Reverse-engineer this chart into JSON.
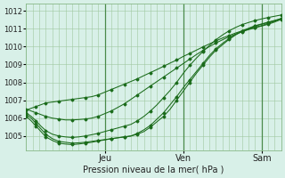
{
  "bg_color": "#d8f0e8",
  "line_color": "#1a6b1a",
  "grid_color": "#a0c8a0",
  "xlabel_label": "Pression niveau de la mer( hPa )",
  "xlabel_ticks": [
    "Jeu",
    "Ven",
    "Sam"
  ],
  "xlabel_tick_positions": [
    48,
    96,
    144
  ],
  "xlim": [
    0,
    156
  ],
  "ylim": [
    1004.2,
    1012.4
  ],
  "yticks": [
    1005,
    1006,
    1007,
    1008,
    1009,
    1010,
    1011,
    1012
  ],
  "series": [
    {
      "x": [
        0,
        3,
        6,
        9,
        12,
        16,
        20,
        24,
        28,
        32,
        36,
        40,
        44,
        48,
        52,
        56,
        60,
        64,
        68,
        72,
        76,
        80,
        84,
        88,
        92,
        96,
        100,
        104,
        108,
        112,
        116,
        120,
        124,
        128,
        132,
        136,
        140,
        144,
        148,
        152,
        156
      ],
      "y": [
        1006.2,
        1006.0,
        1005.7,
        1005.4,
        1005.1,
        1004.85,
        1004.7,
        1004.65,
        1004.6,
        1004.62,
        1004.65,
        1004.7,
        1004.75,
        1004.8,
        1004.85,
        1004.9,
        1004.95,
        1005.0,
        1005.1,
        1005.25,
        1005.5,
        1005.8,
        1006.1,
        1006.5,
        1007.0,
        1007.5,
        1008.0,
        1008.5,
        1008.95,
        1009.4,
        1009.8,
        1010.1,
        1010.4,
        1010.65,
        1010.85,
        1011.0,
        1011.15,
        1011.25,
        1011.35,
        1011.45,
        1011.55
      ]
    },
    {
      "x": [
        0,
        3,
        6,
        9,
        12,
        16,
        20,
        24,
        28,
        32,
        36,
        40,
        44,
        48,
        52,
        56,
        60,
        64,
        68,
        72,
        76,
        80,
        84,
        88,
        92,
        96,
        100,
        104,
        108,
        112,
        116,
        120,
        124,
        128,
        132,
        136,
        140,
        144,
        148,
        152,
        156
      ],
      "y": [
        1006.1,
        1005.85,
        1005.55,
        1005.25,
        1004.95,
        1004.75,
        1004.6,
        1004.55,
        1004.52,
        1004.55,
        1004.6,
        1004.65,
        1004.72,
        1004.78,
        1004.85,
        1004.9,
        1004.95,
        1005.0,
        1005.15,
        1005.35,
        1005.6,
        1005.95,
        1006.3,
        1006.75,
        1007.2,
        1007.7,
        1008.15,
        1008.6,
        1009.05,
        1009.5,
        1009.88,
        1010.18,
        1010.45,
        1010.68,
        1010.88,
        1011.03,
        1011.17,
        1011.27,
        1011.37,
        1011.47,
        1011.57
      ]
    },
    {
      "x": [
        0,
        3,
        6,
        9,
        12,
        16,
        20,
        24,
        28,
        32,
        36,
        40,
        44,
        48,
        52,
        56,
        60,
        64,
        68,
        72,
        76,
        80,
        84,
        88,
        92,
        96,
        100,
        104,
        108,
        112,
        116,
        120,
        124,
        128,
        132,
        136,
        140,
        144,
        148,
        152,
        156
      ],
      "y": [
        1006.3,
        1006.1,
        1005.85,
        1005.55,
        1005.3,
        1005.1,
        1005.0,
        1004.95,
        1004.92,
        1004.95,
        1005.0,
        1005.07,
        1005.15,
        1005.25,
        1005.35,
        1005.45,
        1005.55,
        1005.65,
        1005.85,
        1006.1,
        1006.4,
        1006.75,
        1007.15,
        1007.55,
        1008.0,
        1008.5,
        1008.95,
        1009.35,
        1009.72,
        1010.06,
        1010.38,
        1010.65,
        1010.88,
        1011.07,
        1011.23,
        1011.35,
        1011.46,
        1011.55,
        1011.63,
        1011.7,
        1011.77
      ]
    },
    {
      "x": [
        0,
        3,
        6,
        9,
        12,
        16,
        20,
        24,
        28,
        32,
        36,
        40,
        44,
        48,
        52,
        56,
        60,
        64,
        68,
        72,
        76,
        80,
        84,
        88,
        92,
        96,
        100,
        104,
        108,
        112,
        116,
        120,
        124,
        128,
        132,
        136,
        140,
        144,
        148,
        152,
        156
      ],
      "y": [
        1006.5,
        1006.4,
        1006.3,
        1006.2,
        1006.1,
        1006.0,
        1005.95,
        1005.9,
        1005.9,
        1005.92,
        1005.95,
        1006.0,
        1006.1,
        1006.25,
        1006.4,
        1006.6,
        1006.8,
        1007.05,
        1007.3,
        1007.55,
        1007.8,
        1008.05,
        1008.3,
        1008.55,
        1008.8,
        1009.05,
        1009.3,
        1009.55,
        1009.78,
        1010.0,
        1010.2,
        1010.38,
        1010.55,
        1010.7,
        1010.83,
        1010.95,
        1011.05,
        1011.15,
        1011.25,
        1011.38,
        1011.52
      ]
    },
    {
      "x": [
        0,
        3,
        6,
        9,
        12,
        16,
        20,
        24,
        28,
        32,
        36,
        40,
        44,
        48,
        52,
        56,
        60,
        64,
        68,
        72,
        76,
        80,
        84,
        88,
        92,
        96,
        100,
        104,
        108,
        112,
        116,
        120,
        124,
        128,
        132,
        136,
        140,
        144,
        148,
        152,
        156
      ],
      "y": [
        1006.45,
        1006.55,
        1006.65,
        1006.75,
        1006.85,
        1006.9,
        1006.95,
        1007.0,
        1007.05,
        1007.1,
        1007.15,
        1007.2,
        1007.3,
        1007.45,
        1007.6,
        1007.75,
        1007.9,
        1008.05,
        1008.2,
        1008.38,
        1008.55,
        1008.72,
        1008.9,
        1009.08,
        1009.25,
        1009.45,
        1009.62,
        1009.8,
        1009.98,
        1010.15,
        1010.32,
        1010.48,
        1010.62,
        1010.76,
        1010.88,
        1010.98,
        1011.08,
        1011.18,
        1011.3,
        1011.42,
        1011.58
      ]
    }
  ]
}
